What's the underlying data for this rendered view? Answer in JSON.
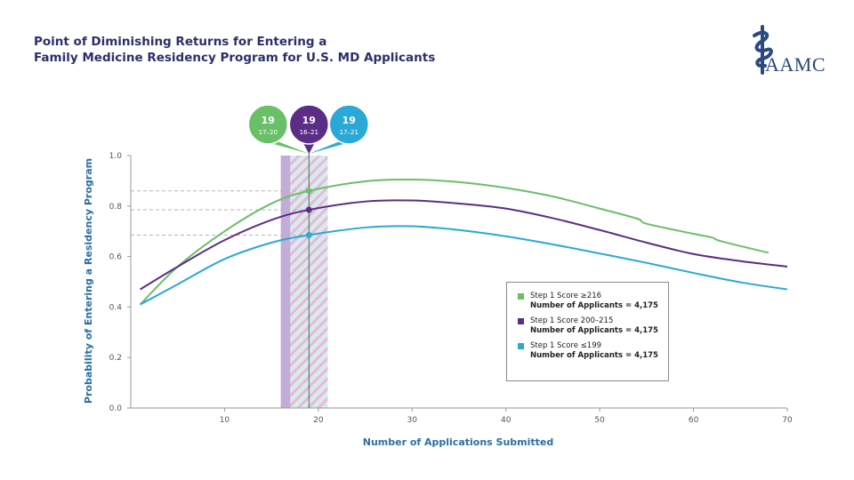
{
  "header": {
    "title_line1": "Point of Diminishing Returns for Entering a",
    "title_line2": "Family Medicine Residency Program for U.S. MD Applicants",
    "logo_text": "AAMC",
    "logo_icon": "caduceus-icon"
  },
  "colors": {
    "green": "#6abf69",
    "purple": "#5b2d86",
    "blue": "#2aa8d6",
    "axis_text": "#2b6ea6",
    "band_purple": "#c2acd8",
    "band_stripe": "#c9dde6"
  },
  "chart_data": {
    "type": "line",
    "title": "Point of Diminishing Returns for Entering a Family Medicine Residency Program for U.S. MD Applicants",
    "xlabel": "Number of Applications Submitted",
    "ylabel": "Probability of Entering a Residency Program",
    "xlim": [
      0,
      70
    ],
    "ylim": [
      0,
      1.0
    ],
    "xticks": [
      10,
      20,
      30,
      40,
      50,
      60,
      70
    ],
    "yticks": [
      0.0,
      0.2,
      0.4,
      0.6,
      0.8,
      1.0
    ],
    "ytick_labels": [
      "0.0",
      "0.2",
      "0.4",
      "0.6",
      "0.8",
      "1.0"
    ],
    "series": [
      {
        "name": "Step 1 Score ≥216",
        "count_label": "Number of Applicants = 4,175",
        "color": "#6abf69",
        "x": [
          1,
          5,
          10,
          15,
          19,
          25,
          30,
          35,
          40,
          45,
          50,
          54,
          55,
          60,
          62,
          63,
          68
        ],
        "y": [
          0.41,
          0.56,
          0.7,
          0.81,
          0.86,
          0.898,
          0.905,
          0.895,
          0.872,
          0.838,
          0.79,
          0.75,
          0.73,
          0.69,
          0.675,
          0.66,
          0.615
        ],
        "pdr_x": 19,
        "pdr_y": 0.86,
        "bubble_main": "19",
        "bubble_range": "17–20",
        "band": [
          17,
          20
        ]
      },
      {
        "name": "Step 1 Score 200–215",
        "count_label": "Number of Applicants = 4,175",
        "color": "#5b2d86",
        "x": [
          1,
          5,
          10,
          15,
          19,
          25,
          30,
          35,
          40,
          45,
          50,
          55,
          60,
          65,
          70
        ],
        "y": [
          0.47,
          0.56,
          0.665,
          0.745,
          0.785,
          0.818,
          0.822,
          0.81,
          0.79,
          0.752,
          0.705,
          0.655,
          0.61,
          0.582,
          0.56
        ],
        "pdr_x": 19,
        "pdr_y": 0.785,
        "bubble_main": "19",
        "bubble_range": "16–21",
        "band": [
          16,
          21
        ]
      },
      {
        "name": "Step 1 Score ≤199",
        "count_label": "Number of Applicants = 4,175",
        "color": "#2aa8d6",
        "x": [
          1,
          5,
          10,
          15,
          19,
          25,
          30,
          35,
          40,
          45,
          50,
          55,
          60,
          65,
          70
        ],
        "y": [
          0.41,
          0.49,
          0.59,
          0.655,
          0.685,
          0.715,
          0.72,
          0.705,
          0.68,
          0.648,
          0.612,
          0.575,
          0.535,
          0.498,
          0.47
        ],
        "pdr_x": 19,
        "pdr_y": 0.685,
        "bubble_main": "19",
        "bubble_range": "17–21",
        "band": [
          17,
          21
        ]
      }
    ],
    "legend_position": "bottom-right"
  }
}
